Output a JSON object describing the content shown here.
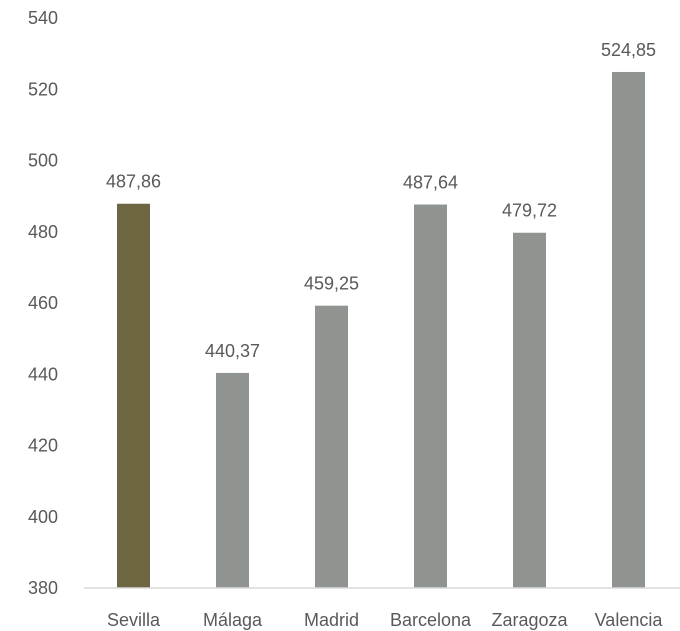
{
  "chart_data": {
    "type": "bar",
    "categories": [
      "Sevilla",
      "Málaga",
      "Madrid",
      "Barcelona",
      "Zaragoza",
      "Valencia"
    ],
    "values": [
      487.86,
      440.37,
      459.25,
      487.64,
      479.72,
      524.85
    ],
    "value_labels": [
      "487,86",
      "440,37",
      "459,25",
      "487,64",
      "479,72",
      "524,85"
    ],
    "ylim": [
      380,
      540
    ],
    "yticks": [
      380,
      400,
      420,
      440,
      460,
      480,
      500,
      520,
      540
    ],
    "grid": false,
    "legend": "none",
    "colors": {
      "highlight": "#6e6541",
      "default": "#909490",
      "axis": "#d9d9d9"
    },
    "highlight_index": 0
  }
}
